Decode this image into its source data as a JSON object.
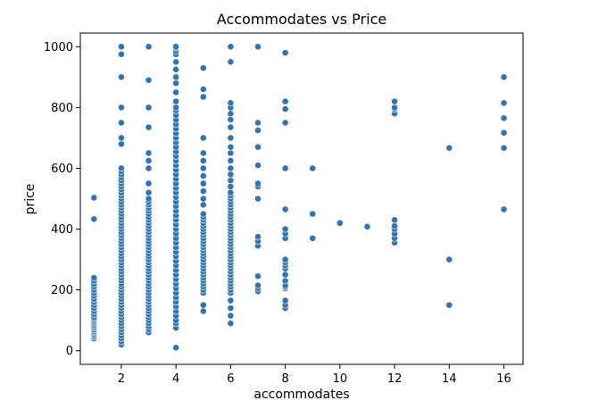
{
  "chart_data": {
    "type": "scatter",
    "title": "Accommodates vs Price",
    "xlabel": "accommodates",
    "ylabel": "price",
    "xlim": [
      0.5,
      16.7
    ],
    "ylim": [
      -45,
      1045
    ],
    "x_ticks": [
      2,
      4,
      6,
      8,
      10,
      12,
      14,
      16
    ],
    "y_ticks": [
      0,
      200,
      400,
      600,
      800,
      1000
    ],
    "grid": false,
    "legend": "none",
    "marker_color": "#3274b0",
    "marker_edge": "#ffffff",
    "points_by_x": [
      {
        "x": 1,
        "y": [
          40,
          45,
          50,
          55,
          60,
          65,
          70,
          75,
          80,
          85,
          90,
          95,
          100,
          105,
          110,
          120,
          130,
          140,
          150,
          160,
          170,
          180,
          190,
          200,
          210,
          220,
          230,
          240,
          433,
          503
        ]
      },
      {
        "x": 2,
        "y": [
          20,
          30,
          40,
          50,
          60,
          70,
          80,
          90,
          100,
          110,
          120,
          130,
          140,
          150,
          160,
          170,
          180,
          190,
          200,
          210,
          220,
          230,
          240,
          250,
          260,
          270,
          280,
          290,
          300,
          310,
          320,
          330,
          340,
          350,
          360,
          370,
          380,
          390,
          400,
          410,
          420,
          430,
          440,
          450,
          460,
          470,
          480,
          490,
          500,
          510,
          520,
          530,
          540,
          550,
          560,
          570,
          580,
          590,
          600,
          680,
          700,
          750,
          800,
          900,
          975,
          1000
        ]
      },
      {
        "x": 3,
        "y": [
          60,
          70,
          80,
          90,
          100,
          110,
          120,
          130,
          140,
          150,
          160,
          170,
          180,
          190,
          200,
          210,
          220,
          230,
          240,
          250,
          260,
          270,
          280,
          290,
          300,
          310,
          320,
          330,
          340,
          350,
          360,
          370,
          380,
          390,
          400,
          410,
          420,
          430,
          440,
          450,
          460,
          470,
          480,
          490,
          500,
          520,
          550,
          600,
          625,
          650,
          735,
          800,
          890,
          1000
        ]
      },
      {
        "x": 4,
        "y": [
          10,
          75,
          90,
          100,
          115,
          130,
          145,
          160,
          175,
          190,
          205,
          220,
          235,
          250,
          265,
          280,
          295,
          310,
          325,
          340,
          355,
          370,
          385,
          400,
          415,
          430,
          445,
          460,
          475,
          490,
          505,
          520,
          535,
          550,
          565,
          580,
          595,
          610,
          625,
          640,
          655,
          670,
          685,
          700,
          715,
          730,
          745,
          760,
          775,
          790,
          800,
          820,
          850,
          880,
          900,
          925,
          950,
          975,
          985,
          995,
          1000
        ]
      },
      {
        "x": 5,
        "y": [
          130,
          150,
          190,
          200,
          210,
          220,
          230,
          240,
          250,
          260,
          270,
          280,
          290,
          300,
          310,
          320,
          330,
          340,
          350,
          360,
          370,
          380,
          390,
          400,
          410,
          420,
          430,
          440,
          450,
          480,
          500,
          525,
          550,
          575,
          600,
          625,
          650,
          700,
          835,
          860,
          930
        ]
      },
      {
        "x": 6,
        "y": [
          90,
          115,
          140,
          165,
          190,
          200,
          210,
          220,
          230,
          240,
          250,
          260,
          270,
          280,
          290,
          300,
          310,
          320,
          330,
          340,
          350,
          360,
          370,
          380,
          390,
          400,
          410,
          420,
          430,
          440,
          450,
          460,
          470,
          480,
          490,
          500,
          510,
          520,
          540,
          560,
          580,
          600,
          625,
          650,
          670,
          700,
          735,
          760,
          780,
          800,
          815,
          950,
          1000
        ]
      },
      {
        "x": 7,
        "y": [
          195,
          205,
          215,
          245,
          345,
          360,
          375,
          500,
          540,
          550,
          610,
          670,
          725,
          750,
          1000
        ]
      },
      {
        "x": 8,
        "y": [
          140,
          150,
          165,
          205,
          210,
          215,
          230,
          250,
          270,
          280,
          290,
          300,
          370,
          385,
          400,
          465,
          600,
          750,
          795,
          820,
          980
        ]
      },
      {
        "x": 9,
        "y": [
          370,
          450,
          600
        ]
      },
      {
        "x": 10,
        "y": [
          420
        ]
      },
      {
        "x": 11,
        "y": [
          408
        ]
      },
      {
        "x": 12,
        "y": [
          355,
          370,
          385,
          400,
          410,
          430,
          780,
          795,
          800,
          820
        ]
      },
      {
        "x": 14,
        "y": [
          150,
          300,
          667
        ]
      },
      {
        "x": 16,
        "y": [
          465,
          667,
          717,
          765,
          815,
          900
        ]
      }
    ]
  }
}
